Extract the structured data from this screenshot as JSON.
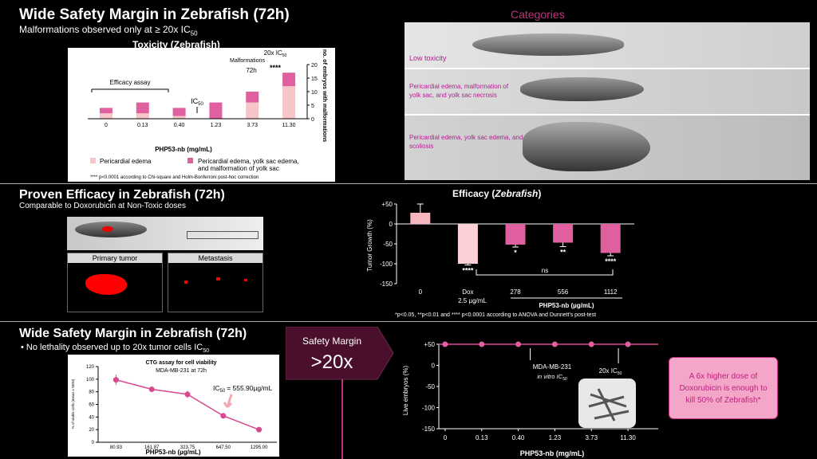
{
  "section1": {
    "title": "Wide Safety Margin in Zebrafish (72h)",
    "subtitle": "Malformations observed only at ≥ 20x IC",
    "subtitle_sub": "50",
    "chart_title": "Toxicity (Zebrafish)",
    "efficacy_label": "Efficacy assay",
    "ic50_label": "IC",
    "ic50_sub": "50",
    "malform_label": "Malformations",
    "h72": "72h",
    "x20_label": "20x IC",
    "x20_sub": "50",
    "stars": "****",
    "y_right_label": "no. of embryos with malformations",
    "x_label": "PHP53-nb (mg/mL)",
    "legend1": "Pericardial edema",
    "legend2": "Pericardial edema, yolk sac edema, and malformation of yolk sac",
    "footnote": "**** p<0.0001 according to Chi-square and Holm-Bonferroni post-hoc correction",
    "colors": {
      "light": "#f7c5c8",
      "dark": "#e0609f"
    }
  },
  "categories": {
    "title": "Categories",
    "items": [
      "Low toxicity",
      "Pericardial edema, malformation of yolk sac, and yolk sac necrosis",
      "Pericardial edema, yolk sac edema, and scoliosis"
    ]
  },
  "section2": {
    "title": "Proven Efficacy in Zebrafish (72h)",
    "subtitle": "Comparable to Doxorubicin at Non-Toxic doses",
    "primary_label": "Primary tumor",
    "meta_label": "Metastasis",
    "chart_title": "Efficacy (",
    "chart_title_it": "Zebrafish",
    "chart_title_end": ")",
    "y_label": "Tumor Growth (%)",
    "dox_label": "Dox",
    "dox_dose": "2.5 µg/mL",
    "group_label": "PHP53-nb (µg/mL)",
    "ns": "ns",
    "footnote": "*p<0.05, **p<0.01 and **** p<0.0001 according to ANOVA and Dunnett's post-test"
  },
  "section3": {
    "title": "Wide Safety Margin in Zebrafish (72h)",
    "bullet": "• No lethality observed up to 20x tumor cells IC",
    "bullet_sub": "50",
    "ctg_title": "CTG assay for cell viability",
    "ctg_sub": "MDA-MB-231 at 72h",
    "ic50_value": "= 555.90µg/mL",
    "ic50_prefix": "IC",
    "ic50_sub": "50",
    "y_label": "% of viable cells (mean ± SEM)",
    "x_label": "PHP53-nb (µg/mL)",
    "safety_label": "Safety Margin",
    "safety_value": ">20x",
    "live_y_label": "Live embryos (%)",
    "mda_label": "MDA-MB-231",
    "invitro_label": "in vitro IC",
    "invitro_sub": "50",
    "x20_label": "20x IC",
    "x20_sub": "50",
    "live_x_label": "PHP53-nb (mg/mL)",
    "callout": "A 6x higher dose of Doxorubicin is enough to kill 50% of Zebrafish*"
  },
  "chart_data": [
    {
      "type": "bar",
      "title": "Toxicity (Zebrafish)",
      "categories": [
        "0",
        "0.13",
        "0.40",
        "1.23",
        "3.73",
        "11.30"
      ],
      "xlabel": "PHP53-nb (mg/mL)",
      "ylabel": "no. of embryos with malformations",
      "ylim": [
        0,
        20
      ],
      "yticks": [
        0,
        5,
        10,
        15,
        20
      ],
      "series": [
        {
          "name": "Pericardial edema",
          "values": [
            2,
            2,
            1,
            0,
            6,
            12
          ]
        },
        {
          "name": "Pericardial edema, yolk sac edema, and malformation of yolk sac",
          "values": [
            2,
            4,
            3,
            6,
            4,
            5
          ]
        }
      ]
    },
    {
      "type": "bar",
      "title": "Efficacy (Zebrafish)",
      "categories": [
        "0",
        "Dox",
        "278",
        "556",
        "1112"
      ],
      "ylabel": "Tumor Growth (%)",
      "ylim": [
        -150,
        50
      ],
      "yticks": [
        50,
        0,
        -50,
        -100,
        -150
      ],
      "values": [
        28,
        -100,
        -52,
        -47,
        -73
      ],
      "errors": [
        22,
        3,
        6,
        10,
        7
      ],
      "significance": [
        "",
        "****",
        "*",
        "**",
        "****"
      ]
    },
    {
      "type": "line",
      "title": "CTG assay for cell viability",
      "x": [
        "80.93",
        "161.87",
        "323.75",
        "647.50",
        "1295.00"
      ],
      "values": [
        99,
        84,
        76,
        42,
        20
      ],
      "errors": [
        8,
        2,
        6,
        3,
        2
      ],
      "xlabel": "PHP53-nb (µg/mL)",
      "ylabel": "% of viable cells (mean ± SEM)",
      "ylim": [
        0,
        120
      ],
      "yticks": [
        0,
        20,
        40,
        60,
        80,
        100,
        120
      ]
    },
    {
      "type": "line",
      "x": [
        "0",
        "0.13",
        "0.40",
        "1.23",
        "3.73",
        "11.30"
      ],
      "values": [
        50,
        50,
        50,
        50,
        50,
        50
      ],
      "xlabel": "PHP53-nb (mg/mL)",
      "ylabel": "Live embryos (%)",
      "ylim": [
        -150,
        50
      ],
      "yticks": [
        50,
        0,
        -50,
        -100,
        -150
      ]
    }
  ]
}
